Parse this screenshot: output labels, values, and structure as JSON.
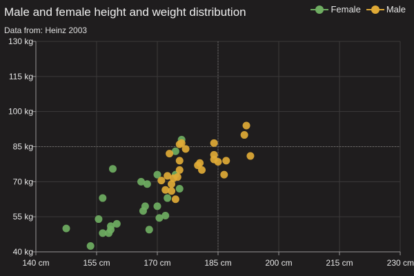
{
  "chart_data": {
    "type": "scatter",
    "title": "Male and female height and weight distribution",
    "subtitle": "Data from: Heinz 2003",
    "xlabel": "",
    "ylabel": "",
    "xlim": [
      140,
      230
    ],
    "ylim": [
      40,
      130
    ],
    "xticks": [
      "140 cm",
      "155 cm",
      "170 cm",
      "185 cm",
      "200 cm",
      "215 cm",
      "230 cm"
    ],
    "yticks": [
      "130 kg",
      "115 kg",
      "100 kg",
      "85 kg",
      "70 kg",
      "55 kg",
      "40 kg"
    ],
    "xtick_values": [
      140,
      155,
      170,
      185,
      200,
      215,
      230
    ],
    "ytick_values": [
      130,
      115,
      100,
      85,
      70,
      55,
      40
    ],
    "grid": true,
    "legend_position": "top-right",
    "crosshair": {
      "x": 185,
      "y": 85
    },
    "series": [
      {
        "name": "Female",
        "color": "#6fae62",
        "points": [
          [
            147.5,
            50
          ],
          [
            153.5,
            42.5
          ],
          [
            155.5,
            54
          ],
          [
            156.5,
            63
          ],
          [
            156.5,
            48
          ],
          [
            158,
            48
          ],
          [
            158.5,
            51
          ],
          [
            158.5,
            49.5
          ],
          [
            159,
            75.5
          ],
          [
            160,
            52
          ],
          [
            166,
            70
          ],
          [
            166.5,
            57.5
          ],
          [
            167,
            59.5
          ],
          [
            167.5,
            69
          ],
          [
            168,
            49.5
          ],
          [
            170,
            59.5
          ],
          [
            170,
            73
          ],
          [
            170.5,
            54.5
          ],
          [
            172,
            55.5
          ],
          [
            172.5,
            63
          ],
          [
            174.5,
            73
          ],
          [
            174.5,
            83
          ],
          [
            175.5,
            67
          ],
          [
            176,
            88
          ]
        ]
      },
      {
        "name": "Male",
        "color": "#e0aa36",
        "points": [
          [
            171,
            70.5
          ],
          [
            172,
            66.5
          ],
          [
            172.5,
            72.5
          ],
          [
            173,
            82
          ],
          [
            173.5,
            69
          ],
          [
            173.5,
            66
          ],
          [
            174,
            71.5
          ],
          [
            174.5,
            62.5
          ],
          [
            175,
            72
          ],
          [
            175.5,
            75
          ],
          [
            175.5,
            79
          ],
          [
            175.5,
            86
          ],
          [
            176,
            86.5
          ],
          [
            177,
            84
          ],
          [
            180,
            77
          ],
          [
            180.5,
            78
          ],
          [
            181,
            75
          ],
          [
            184,
            86.5
          ],
          [
            184,
            81.5
          ],
          [
            184,
            79.5
          ],
          [
            185,
            78.5
          ],
          [
            186.5,
            73
          ],
          [
            187,
            79
          ],
          [
            191.5,
            90
          ],
          [
            192,
            94
          ],
          [
            193,
            81
          ]
        ]
      }
    ]
  }
}
